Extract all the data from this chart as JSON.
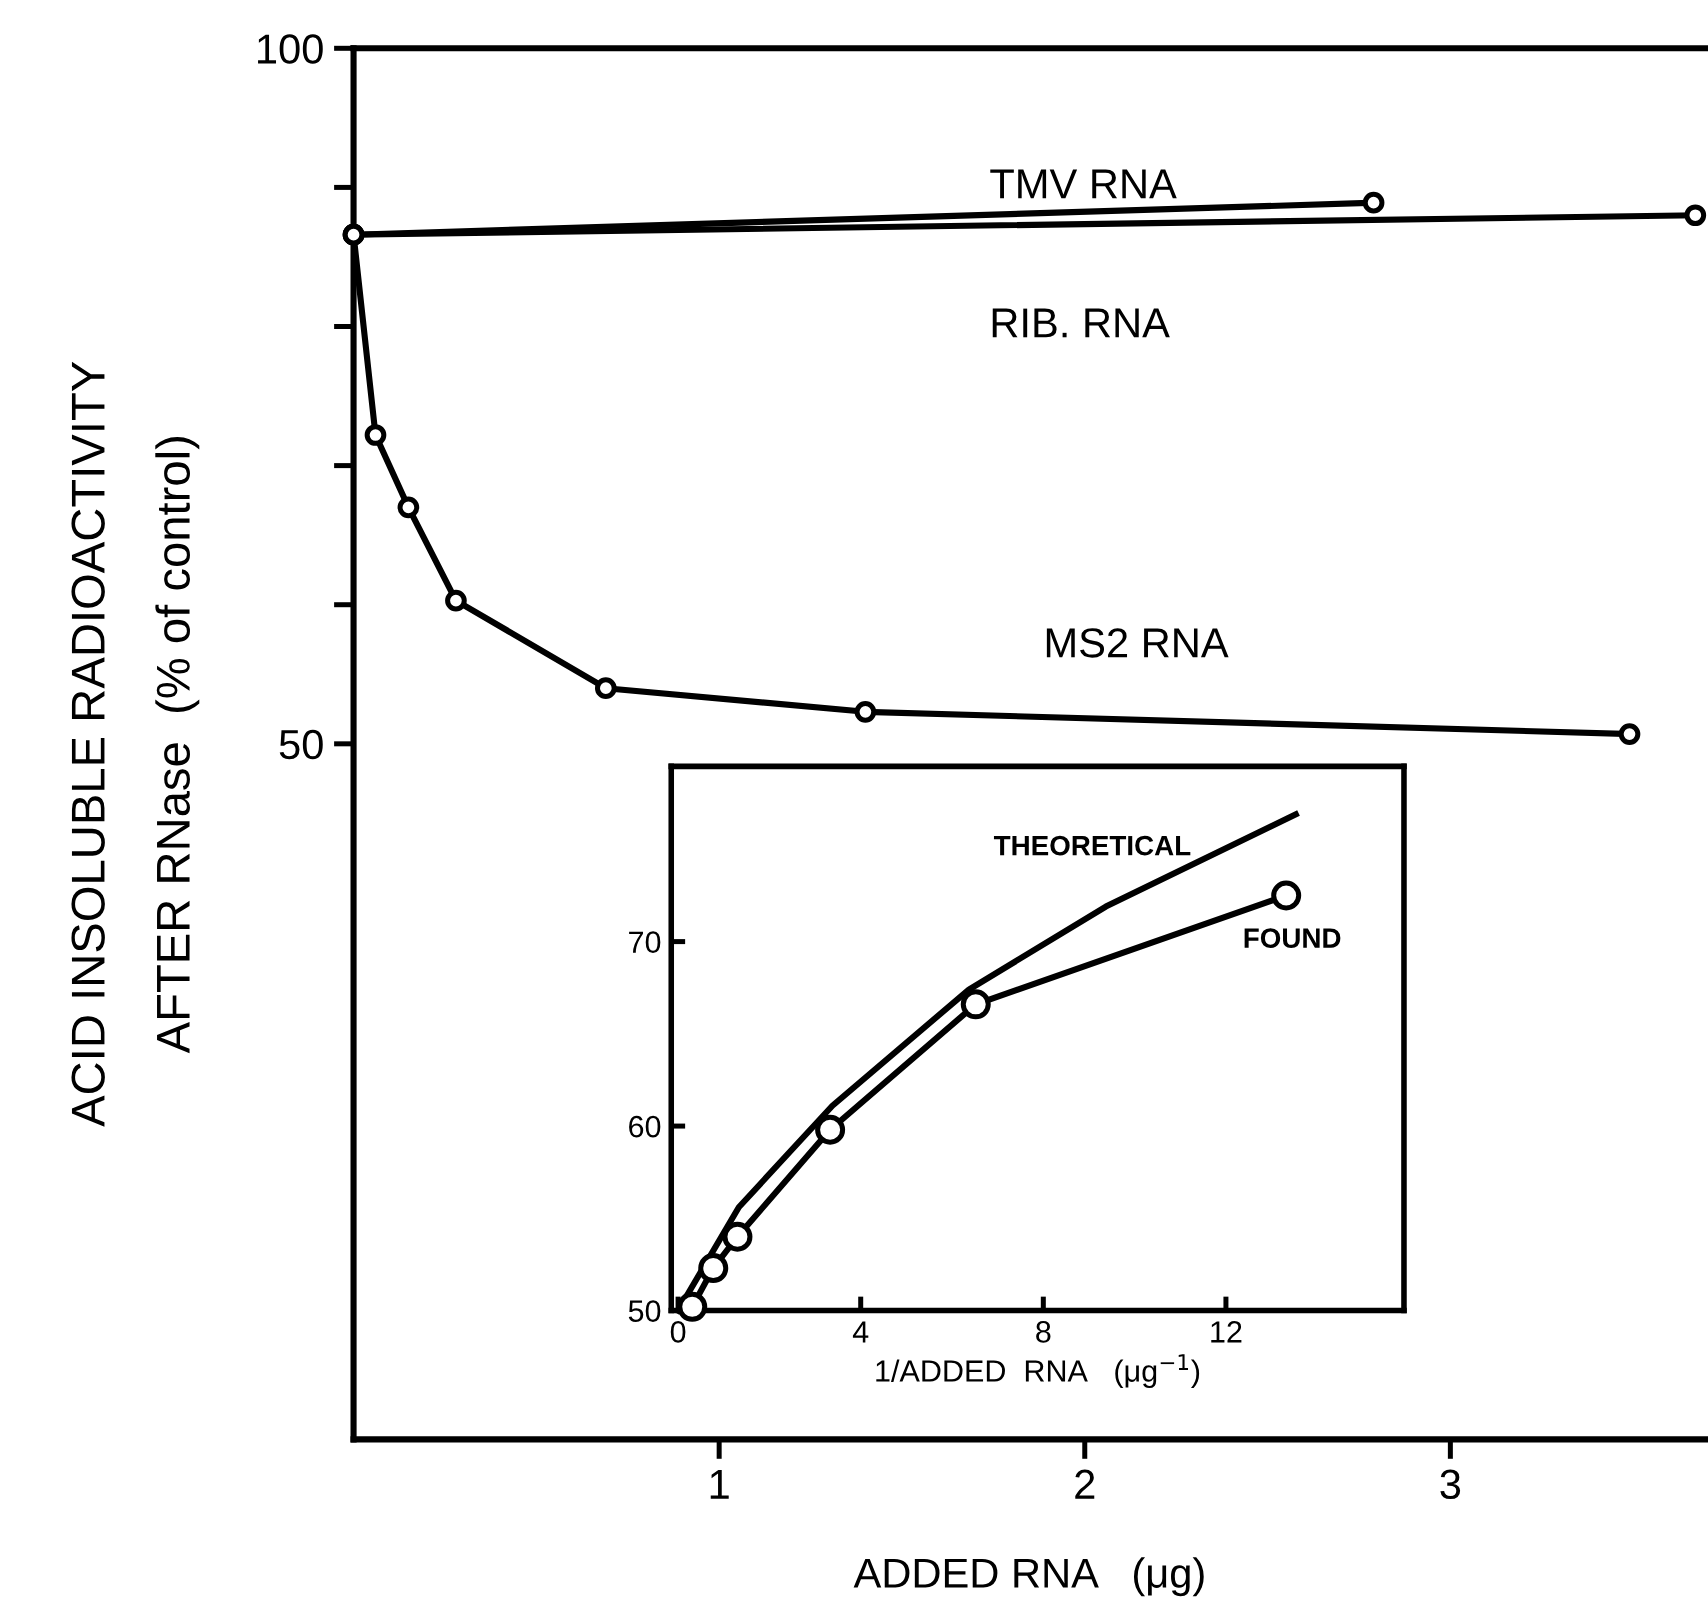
{
  "chart_data": [
    {
      "type": "line",
      "xlabel": "ADDED RNA   (μg)",
      "ylabel": "ACID INSOLUBLE RADIOACTIVITY\nAFTER RNase  (% of control)",
      "xlim": [
        0,
        3.7
      ],
      "ylim": [
        0,
        100
      ],
      "xticks": [
        1,
        2,
        3
      ],
      "yticks": [
        50,
        {
          "value": 60,
          "label": null
        },
        {
          "value": 70,
          "label": null
        },
        {
          "value": 80,
          "label": null
        },
        {
          "value": 90,
          "label": null
        },
        100
      ],
      "marker": "circle",
      "grid": false,
      "legend": false,
      "series": [
        {
          "name": "TMV RNA",
          "color": "#000000",
          "x": [
            0,
            2.79
          ],
          "values": [
            86.6,
            88.9
          ]
        },
        {
          "name": "RIB. RNA",
          "color": "#000000",
          "x": [
            0,
            3.67
          ],
          "values": [
            86.6,
            88.0
          ]
        },
        {
          "name": "MS2 RNA",
          "color": "#000000",
          "x": [
            0,
            0.06,
            0.15,
            0.28,
            0.69,
            1.4,
            3.49
          ],
          "values": [
            86.6,
            72.2,
            67.0,
            60.3,
            54.0,
            52.3,
            50.7
          ]
        }
      ]
    },
    {
      "type": "line",
      "xlabel": "1/ADDED  RNA   (μg$^{−1}$)",
      "xlim": [
        -0.15,
        15.9
      ],
      "ylim": [
        50,
        79.5
      ],
      "xticks": [
        0,
        4,
        8,
        12
      ],
      "yticks": [
        50,
        60,
        70
      ],
      "grid": false,
      "legend": false,
      "series": [
        {
          "name": "THEORETICAL",
          "color": "#000000",
          "marker": "none",
          "x": [
            0,
            1.33,
            3.38,
            6.37,
            9.37,
            13.53
          ],
          "values": [
            50,
            55.6,
            61.1,
            67.4,
            71.9,
            76.9
          ]
        },
        {
          "name": "FOUND",
          "color": "#000000",
          "marker": "circle",
          "x": [
            0.31,
            0.77,
            1.3,
            3.33,
            6.52,
            13.32
          ],
          "values": [
            50.2,
            52.3,
            54.0,
            59.8,
            66.6,
            72.5
          ]
        }
      ]
    }
  ]
}
